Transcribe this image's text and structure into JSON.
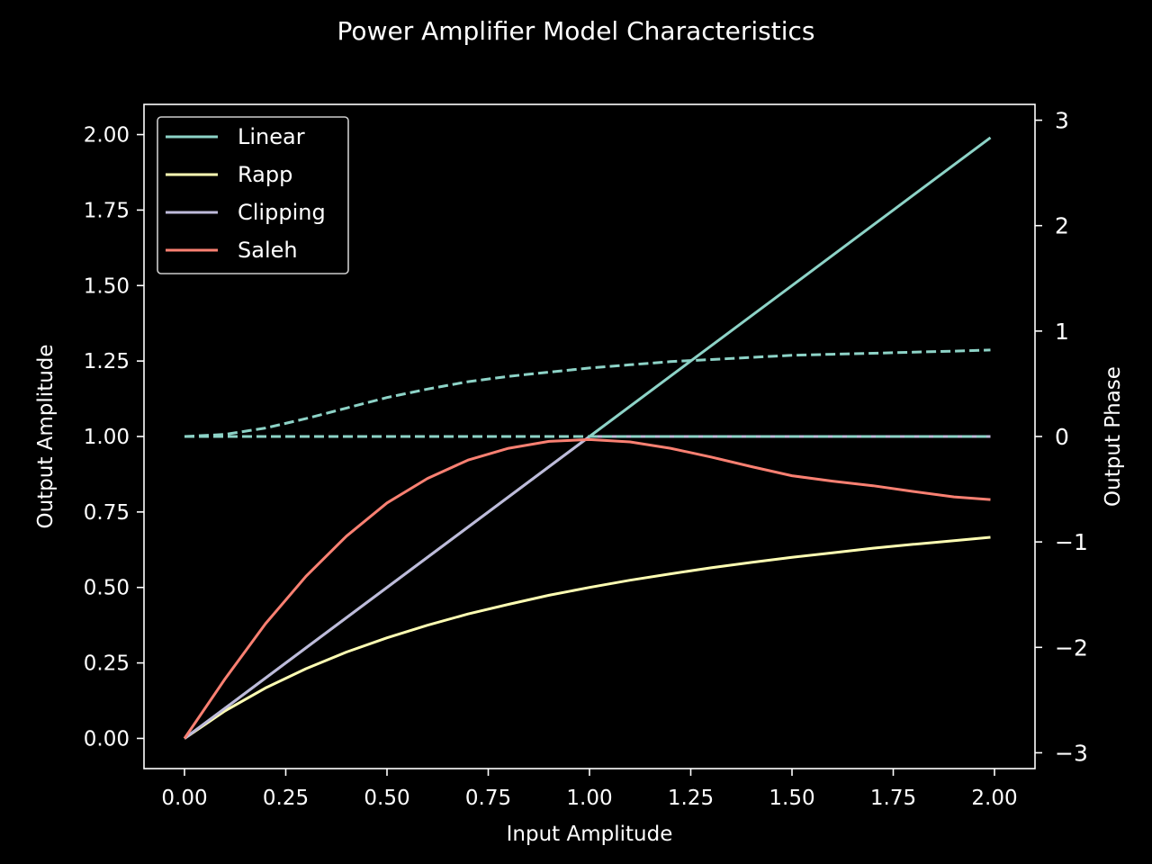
{
  "chart_data": {
    "type": "line",
    "title": "Power Amplifier Model Characteristics",
    "xlabel": "Input Amplitude",
    "ylabel": "Output Amplitude",
    "y2label": "Output Phase",
    "xlim": [
      -0.1,
      2.1
    ],
    "ylim": [
      -0.1,
      2.1
    ],
    "y2lim": [
      -3.15,
      3.15
    ],
    "xticks": [
      "0.00",
      "0.25",
      "0.50",
      "0.75",
      "1.00",
      "1.25",
      "1.50",
      "1.75",
      "2.00"
    ],
    "yticks": [
      "0.00",
      "0.25",
      "0.50",
      "0.75",
      "1.00",
      "1.25",
      "1.50",
      "1.75",
      "2.00"
    ],
    "y2ticks": [
      "−3",
      "−2",
      "−1",
      "0",
      "1",
      "2",
      "3"
    ],
    "grid": false,
    "legend_position": "upper-left",
    "series": [
      {
        "name": "Linear",
        "color": "#8dd3c7",
        "axis": "left",
        "style": "solid",
        "x": [
          0,
          0.25,
          0.5,
          0.75,
          1.0,
          1.25,
          1.5,
          1.75,
          1.99
        ],
        "y": [
          0,
          0.25,
          0.5,
          0.75,
          1.0,
          1.25,
          1.5,
          1.75,
          1.99
        ]
      },
      {
        "name": "Rapp",
        "color": "#ffffb3",
        "axis": "left",
        "style": "solid",
        "x": [
          0,
          0.1,
          0.2,
          0.3,
          0.4,
          0.5,
          0.6,
          0.7,
          0.8,
          0.9,
          1.0,
          1.1,
          1.2,
          1.3,
          1.4,
          1.5,
          1.6,
          1.7,
          1.8,
          1.9,
          1.99
        ],
        "y": [
          0,
          0.091,
          0.167,
          0.231,
          0.286,
          0.333,
          0.375,
          0.412,
          0.444,
          0.474,
          0.5,
          0.524,
          0.545,
          0.565,
          0.583,
          0.6,
          0.615,
          0.63,
          0.643,
          0.655,
          0.666
        ]
      },
      {
        "name": "Clipping",
        "color": "#bebada",
        "axis": "left",
        "style": "solid",
        "x": [
          0,
          0.99,
          1.0,
          1.99
        ],
        "y": [
          0,
          0.99,
          1.0,
          1.0
        ]
      },
      {
        "name": "Saleh",
        "color": "#fa8072",
        "axis": "left",
        "style": "solid",
        "x": [
          0,
          0.1,
          0.2,
          0.3,
          0.4,
          0.5,
          0.6,
          0.7,
          0.8,
          0.9,
          1.0,
          1.1,
          1.2,
          1.3,
          1.4,
          1.5,
          1.6,
          1.7,
          1.8,
          1.9,
          1.99
        ],
        "y": [
          0,
          0.197,
          0.38,
          0.537,
          0.67,
          0.78,
          0.861,
          0.922,
          0.961,
          0.984,
          0.99,
          0.982,
          0.961,
          0.932,
          0.9,
          0.87,
          0.852,
          0.837,
          0.818,
          0.8,
          0.791
        ]
      },
      {
        "color": "#8dd3c7",
        "axis": "right",
        "style": "dashed",
        "x": [
          0,
          0.1,
          0.2,
          0.3,
          0.4,
          0.5,
          0.6,
          0.7,
          0.8,
          0.9,
          1.0,
          1.1,
          1.2,
          1.3,
          1.4,
          1.5,
          1.6,
          1.7,
          1.8,
          1.9,
          1.99
        ],
        "y": [
          0,
          0.02,
          0.08,
          0.17,
          0.27,
          0.37,
          0.45,
          0.52,
          0.57,
          0.61,
          0.65,
          0.68,
          0.71,
          0.73,
          0.75,
          0.77,
          0.78,
          0.79,
          0.8,
          0.81,
          0.82
        ]
      },
      {
        "color": "#8dd3c7",
        "axis": "right",
        "style": "dashed",
        "x": [
          0,
          1.99
        ],
        "y": [
          0,
          0
        ]
      }
    ]
  }
}
